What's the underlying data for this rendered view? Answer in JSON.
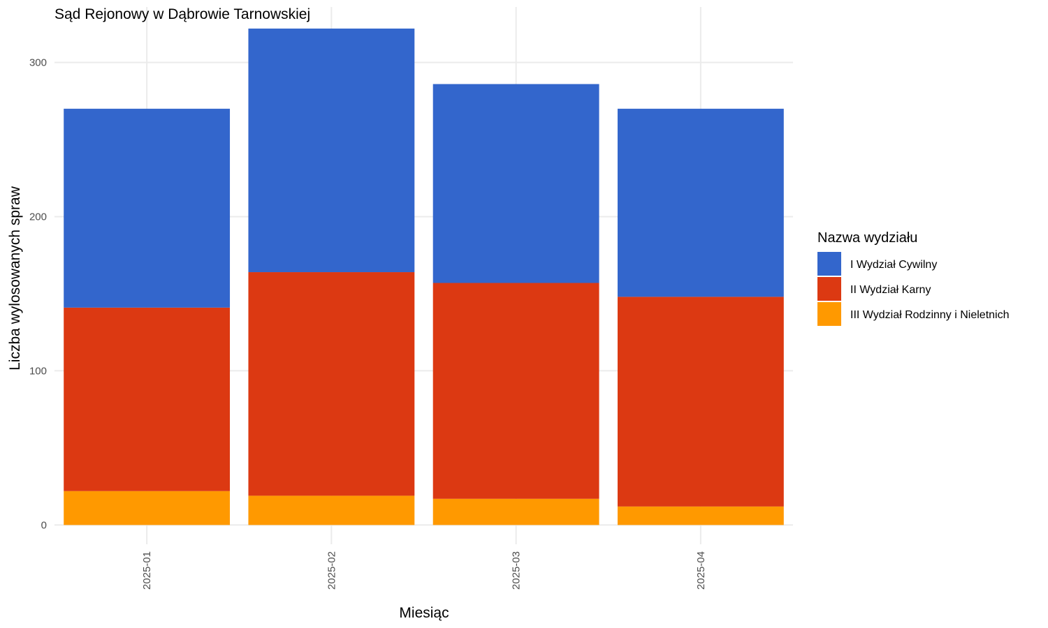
{
  "chart_data": {
    "type": "bar",
    "stacked": true,
    "title": "Sąd Rejonowy w Dąbrowie Tarnowskiej",
    "xlabel": "Miesiąc",
    "ylabel": "Liczba wylosowanych spraw",
    "categories": [
      "2025-01",
      "2025-02",
      "2025-03",
      "2025-04"
    ],
    "series": [
      {
        "name": "III Wydział Rodzinny i Nieletnich",
        "color": "#FF9900",
        "values": [
          22,
          19,
          17,
          12
        ]
      },
      {
        "name": "II Wydział Karny",
        "color": "#DC3912",
        "values": [
          119,
          145,
          140,
          136
        ]
      },
      {
        "name": "I Wydział Cywilny",
        "color": "#3366CC",
        "values": [
          129,
          158,
          129,
          122
        ]
      }
    ],
    "ylim": [
      -12.5,
      336
    ],
    "yticks": [
      0,
      100,
      200,
      300
    ],
    "grid": true,
    "legend": {
      "title": "Nazwa wydziału",
      "position": "right",
      "items": [
        "I Wydział Cywilny",
        "II Wydział Karny",
        "III Wydział Rodzinny i Nieletnich"
      ]
    }
  }
}
